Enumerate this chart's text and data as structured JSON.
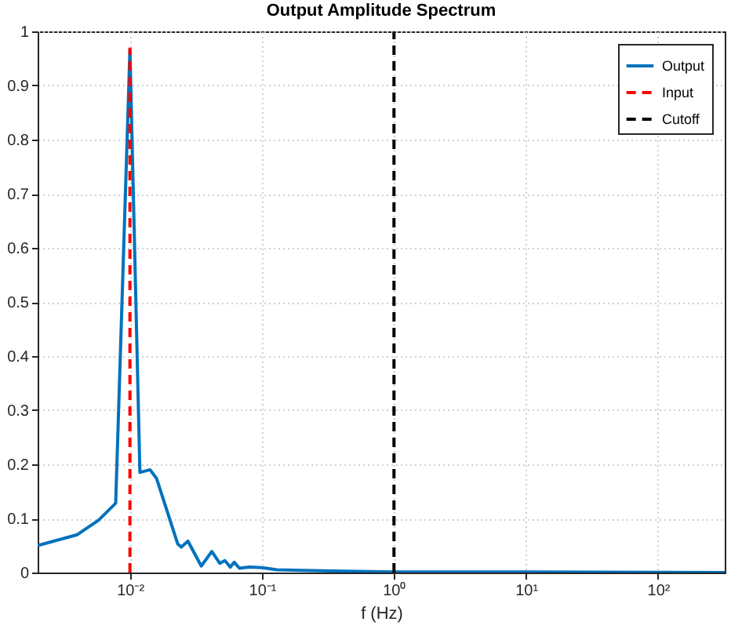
{
  "chart_data": {
    "type": "line",
    "title": "Output Amplitude Spectrum",
    "xlabel": "f (Hz)",
    "log": "x",
    "xlim": [
      0.002,
      320
    ],
    "xticks": [
      {
        "value": 0.01,
        "label": "10⁻²"
      },
      {
        "value": 0.1,
        "label": "10⁻¹"
      },
      {
        "value": 1,
        "label": "10⁰"
      },
      {
        "value": 10,
        "label": "10¹"
      },
      {
        "value": 100,
        "label": "10²"
      }
    ],
    "ylim": [
      0,
      1
    ],
    "yticks": [
      0,
      0.1,
      0.2,
      0.3,
      0.4,
      0.5,
      0.6,
      0.7,
      0.8,
      0.9,
      1
    ],
    "grid": true,
    "legend": "top right",
    "series": [
      {
        "name": "Output",
        "color": "#0072bd",
        "line_style": "solid",
        "x": [
          0.002,
          0.004,
          0.0058,
          0.0078,
          0.01,
          0.0119,
          0.0142,
          0.0159,
          0.023,
          0.0245,
          0.0275,
          0.0347,
          0.0417,
          0.048,
          0.0524,
          0.0575,
          0.0617,
          0.0675,
          0.08,
          0.1,
          0.13,
          0.2,
          0.5,
          1,
          10,
          320
        ],
        "values": [
          0.05,
          0.07,
          0.097,
          0.128,
          0.966,
          0.185,
          0.19,
          0.174,
          0.053,
          0.047,
          0.058,
          0.012,
          0.039,
          0.017,
          0.022,
          0.01,
          0.019,
          0.008,
          0.01,
          0.009,
          0.005,
          0.004,
          0.002,
          0.001,
          0.001,
          0
        ]
      },
      {
        "name": "Input",
        "color": "#ff0000",
        "line_style": "dashed",
        "x": [
          0.01,
          0.01
        ],
        "values": [
          0,
          0.97
        ]
      },
      {
        "name": "Cutoff",
        "color": "#000000",
        "line_style": "dashed",
        "x": [
          1,
          1
        ],
        "values": [
          0,
          1
        ]
      }
    ]
  }
}
